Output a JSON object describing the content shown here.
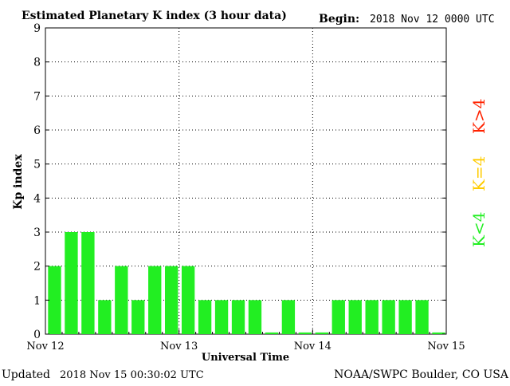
{
  "chart_data": {
    "type": "bar",
    "title": "Estimated Planetary K index (3 hour data)",
    "begin_label": "Begin:",
    "begin_value": "2018 Nov 12 0000 UTC",
    "ylabel": "Kp index",
    "xlabel": "Universal Time",
    "ylim": [
      0,
      9
    ],
    "yticks": [
      "0",
      "1",
      "2",
      "3",
      "4",
      "5",
      "6",
      "7",
      "8",
      "9"
    ],
    "xticks": [
      "Nov 12",
      "Nov 13",
      "Nov 14",
      "Nov 15"
    ],
    "values": [
      2,
      3,
      3,
      1,
      2,
      1,
      2,
      2,
      2,
      1,
      1,
      1,
      1,
      0.05,
      1,
      0.05,
      0.05,
      1,
      1,
      1,
      1,
      1,
      1,
      0.05
    ],
    "bar_color": "#22ee22",
    "grid": true,
    "legend": [
      {
        "label": "K<4",
        "color": "#22ee22"
      },
      {
        "label": "K=4",
        "color": "#ffcc00"
      },
      {
        "label": "K>4",
        "color": "#ff2200"
      }
    ]
  },
  "footer": {
    "updated_label": "Updated",
    "updated_value": "2018 Nov 15 00:30:02 UTC",
    "source": "NOAA/SWPC Boulder, CO USA"
  }
}
